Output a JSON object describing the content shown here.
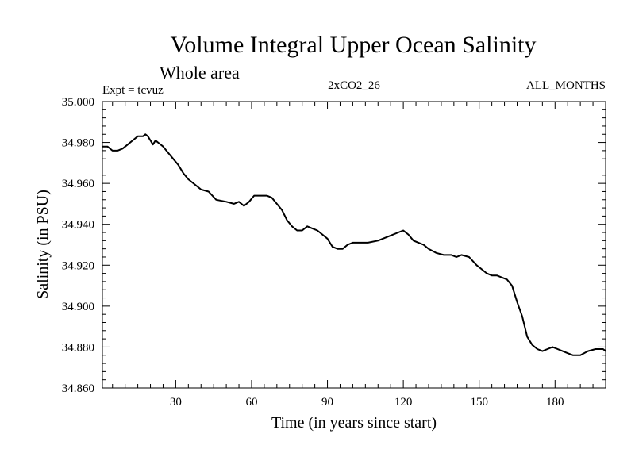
{
  "chart_data": {
    "type": "line",
    "title": "Volume Integral Upper Ocean Salinity",
    "subtitle": "Whole area",
    "left_label": "Expt = tcvuz",
    "center_label": "2xCO2_26",
    "right_label": "ALL_MONTHS",
    "xlabel": "Time (in years since start)",
    "ylabel": "Salinity (in PSU)",
    "xlim": [
      1,
      200
    ],
    "ylim": [
      34.86,
      35.0
    ],
    "x_ticks": [
      30,
      60,
      90,
      120,
      150,
      180
    ],
    "x_tick_labels": [
      "30",
      "60",
      "90",
      "120",
      "150",
      "180"
    ],
    "y_ticks": [
      34.86,
      34.88,
      34.9,
      34.92,
      34.94,
      34.96,
      34.98,
      35.0
    ],
    "y_tick_labels": [
      "34.860",
      "34.880",
      "34.900",
      "34.920",
      "34.940",
      "34.960",
      "34.980",
      "35.000"
    ],
    "grid": false,
    "line_color": "#000000",
    "series": [
      {
        "x": [
          1,
          3,
          5,
          7,
          9,
          11,
          13,
          15,
          17,
          18,
          19,
          20,
          21,
          22,
          23,
          25,
          27,
          29,
          31,
          33,
          35,
          37,
          40,
          43,
          46,
          50,
          53,
          55,
          57,
          59,
          61,
          63,
          66,
          68,
          70,
          72,
          74,
          76,
          78,
          80,
          82,
          84,
          86,
          88,
          90,
          92,
          94,
          96,
          98,
          100,
          102,
          104,
          106,
          110,
          114,
          118,
          120,
          122,
          124,
          126,
          128,
          130,
          133,
          136,
          139,
          141,
          143,
          146,
          149,
          151,
          153,
          155,
          157,
          159,
          161,
          163,
          165,
          167,
          169,
          171,
          173,
          175,
          177,
          179,
          181,
          183,
          185,
          187,
          190,
          193,
          196,
          199,
          200
        ],
        "values": [
          34.978,
          34.978,
          34.976,
          34.976,
          34.977,
          34.979,
          34.981,
          34.983,
          34.983,
          34.984,
          34.983,
          34.981,
          34.979,
          34.981,
          34.98,
          34.978,
          34.975,
          34.972,
          34.969,
          34.965,
          34.962,
          34.96,
          34.957,
          34.956,
          34.952,
          34.951,
          34.95,
          34.951,
          34.949,
          34.951,
          34.954,
          34.954,
          34.954,
          34.953,
          34.95,
          34.947,
          34.942,
          34.939,
          34.937,
          34.937,
          34.939,
          34.938,
          34.937,
          34.935,
          34.933,
          34.929,
          34.928,
          34.928,
          34.93,
          34.931,
          34.931,
          34.931,
          34.931,
          34.932,
          34.934,
          34.936,
          34.937,
          34.935,
          34.932,
          34.931,
          34.93,
          34.928,
          34.926,
          34.925,
          34.925,
          34.924,
          34.925,
          34.924,
          34.92,
          34.918,
          34.916,
          34.915,
          34.915,
          34.914,
          34.913,
          34.91,
          34.902,
          34.895,
          34.885,
          34.881,
          34.879,
          34.878,
          34.879,
          34.88,
          34.879,
          34.878,
          34.877,
          34.876,
          34.876,
          34.878,
          34.879,
          34.879,
          34.878
        ]
      }
    ]
  }
}
